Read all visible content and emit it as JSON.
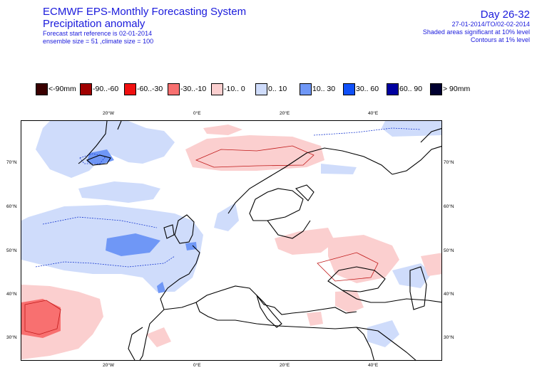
{
  "header": {
    "title_line1": "ECMWF EPS-Monthly Forecasting System",
    "title_line2": "Precipitation anomaly",
    "forecast_ref": "Forecast start reference is 02-01-2014",
    "ensemble": "ensemble size = 51  ,climate size = 100",
    "day": "Day 26-32",
    "date_range": "27-01-2014/TO/02-02-2014",
    "shaded_note": "Shaded areas significant at 10% level",
    "contour_note": "Contours at 1% level"
  },
  "legend": [
    {
      "label": "<-90mm",
      "color": "#3a0000"
    },
    {
      "label": "-90..-60",
      "color": "#a00000"
    },
    {
      "label": "-60..-30",
      "color": "#f01010"
    },
    {
      "label": "-30..-10",
      "color": "#f87070"
    },
    {
      "label": "-10..  0",
      "color": "#fbcfcf"
    },
    {
      "label": "0..  10",
      "color": "#cfdcfb"
    },
    {
      "label": "10..  30",
      "color": "#6f97f6"
    },
    {
      "label": "30..  60",
      "color": "#1050f8"
    },
    {
      "label": "60..  90",
      "color": "#0000a0"
    },
    {
      "label": ">  90mm",
      "color": "#000030"
    }
  ],
  "map": {
    "lon_ticks": [
      "20°W",
      "0°E",
      "20°E",
      "40°E"
    ],
    "lat_ticks": [
      "70°N",
      "60°N",
      "50°N",
      "40°N",
      "30°N"
    ]
  }
}
